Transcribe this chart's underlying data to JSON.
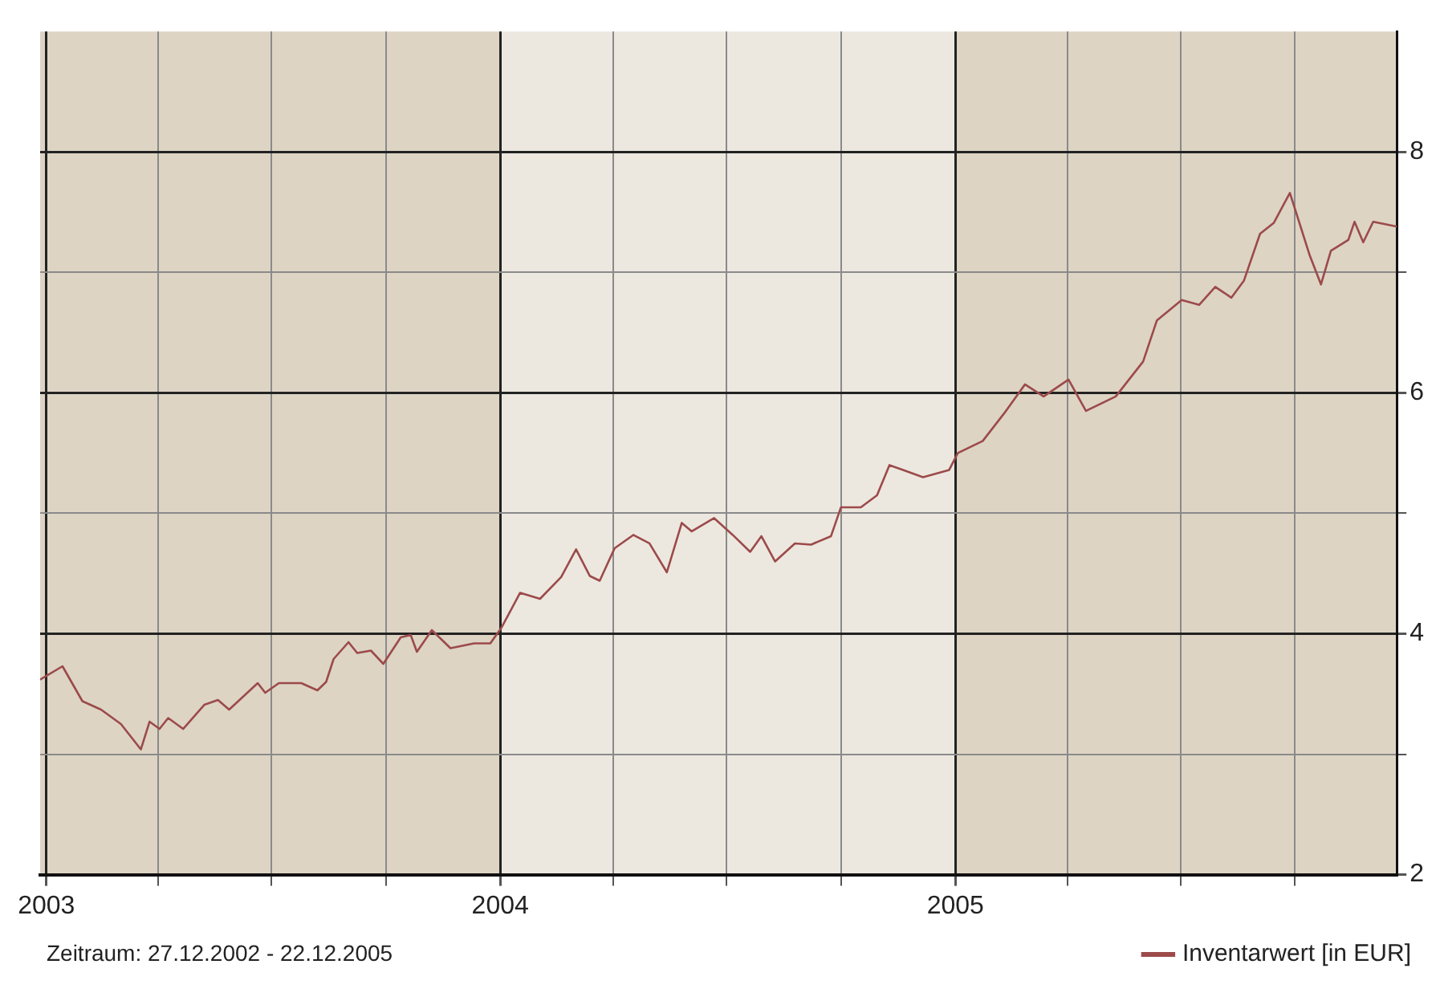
{
  "chart_data": {
    "type": "line",
    "xlabel": null,
    "annotations": [
      "Zeitraum: 27.12.2002 - 22.12.2005"
    ],
    "series": [
      {
        "name": "Inventarwert [in EUR]",
        "color": "#9c4a4a",
        "x": [
          "2002-12-27",
          "2003-01-14",
          "2003-01-30",
          "2003-02-14",
          "2003-03-02",
          "2003-03-18",
          "2003-03-25",
          "2003-04-02",
          "2003-04-09",
          "2003-04-21",
          "2003-05-08",
          "2003-05-19",
          "2003-05-28",
          "2003-06-20",
          "2003-06-26",
          "2003-07-07",
          "2003-07-25",
          "2003-08-07",
          "2003-08-14",
          "2003-08-20",
          "2003-09-01",
          "2003-09-08",
          "2003-09-19",
          "2003-09-29",
          "2003-10-13",
          "2003-10-21",
          "2003-10-26",
          "2003-11-07",
          "2003-11-22",
          "2003-12-11",
          "2003-12-24",
          "2004-01-02",
          "2004-01-17",
          "2004-02-02",
          "2004-02-19",
          "2004-03-02",
          "2004-03-13",
          "2004-03-21",
          "2004-04-02",
          "2004-04-17",
          "2004-04-30",
          "2004-05-14",
          "2004-05-26",
          "2004-06-03",
          "2004-06-21",
          "2004-07-06",
          "2004-07-20",
          "2004-07-29",
          "2004-08-09",
          "2004-08-25",
          "2004-09-07",
          "2004-09-23",
          "2004-10-01",
          "2004-10-17",
          "2004-10-30",
          "2004-11-09",
          "2004-11-20",
          "2004-12-06",
          "2004-12-27",
          "2005-01-03",
          "2005-01-23",
          "2005-02-10",
          "2005-02-26",
          "2005-03-13",
          "2005-04-02",
          "2005-04-16",
          "2005-05-10",
          "2005-06-01",
          "2005-06-12",
          "2005-07-02",
          "2005-07-16",
          "2005-07-29",
          "2005-08-11",
          "2005-08-21",
          "2005-09-03",
          "2005-09-14",
          "2005-09-27",
          "2005-10-13",
          "2005-10-22",
          "2005-10-30",
          "2005-11-13",
          "2005-11-18",
          "2005-11-25",
          "2005-12-03",
          "2005-12-22"
        ],
        "values": [
          3.62,
          3.73,
          3.44,
          3.37,
          3.25,
          3.04,
          3.27,
          3.21,
          3.3,
          3.21,
          3.41,
          3.45,
          3.37,
          3.59,
          3.51,
          3.59,
          3.59,
          3.53,
          3.6,
          3.79,
          3.93,
          3.84,
          3.86,
          3.75,
          3.97,
          3.99,
          3.85,
          4.03,
          3.88,
          3.92,
          3.92,
          4.05,
          4.34,
          4.29,
          4.47,
          4.7,
          4.48,
          4.44,
          4.71,
          4.82,
          4.75,
          4.51,
          4.92,
          4.85,
          4.96,
          4.82,
          4.68,
          4.81,
          4.6,
          4.75,
          4.74,
          4.81,
          5.05,
          5.05,
          5.15,
          5.4,
          5.36,
          5.3,
          5.36,
          5.5,
          5.6,
          5.84,
          6.07,
          5.97,
          6.11,
          5.85,
          5.97,
          6.26,
          6.6,
          6.77,
          6.73,
          6.88,
          6.79,
          6.93,
          7.32,
          7.41,
          7.66,
          7.14,
          6.9,
          7.18,
          7.27,
          7.42,
          7.25,
          7.42,
          7.38
        ]
      }
    ],
    "xlim": [
      "2002-12-27",
      "2005-12-22"
    ],
    "xticks": [
      {
        "value": "2003-01-01",
        "label": "2003"
      },
      {
        "value": "2003-04-01",
        "label": null
      },
      {
        "value": "2003-07-01",
        "label": null
      },
      {
        "value": "2003-10-01",
        "label": null
      },
      {
        "value": "2004-01-01",
        "label": "2004"
      },
      {
        "value": "2004-04-01",
        "label": null
      },
      {
        "value": "2004-07-01",
        "label": null
      },
      {
        "value": "2004-10-01",
        "label": null
      },
      {
        "value": "2005-01-01",
        "label": "2005"
      },
      {
        "value": "2005-04-01",
        "label": null
      },
      {
        "value": "2005-07-01",
        "label": null
      },
      {
        "value": "2005-10-01",
        "label": null
      }
    ],
    "ylim": [
      2,
      9
    ],
    "yticks": [
      2,
      {
        "value": 3,
        "label": null
      },
      4,
      {
        "value": 5,
        "label": null
      },
      6,
      {
        "value": 7,
        "label": null
      },
      8
    ],
    "bands": [
      {
        "axis": "x",
        "from": "2002-12-27",
        "to": "2004-01-01",
        "color": "#ddd4c4"
      },
      {
        "axis": "x",
        "from": "2004-01-01",
        "to": "2005-01-01",
        "color": "#ece8e0"
      },
      {
        "axis": "x",
        "from": "2005-01-01",
        "to": "2005-12-22",
        "color": "#ddd4c4"
      }
    ],
    "grid": true,
    "legend": "bottom right",
    "marker": "none",
    "line_style": "solid"
  }
}
